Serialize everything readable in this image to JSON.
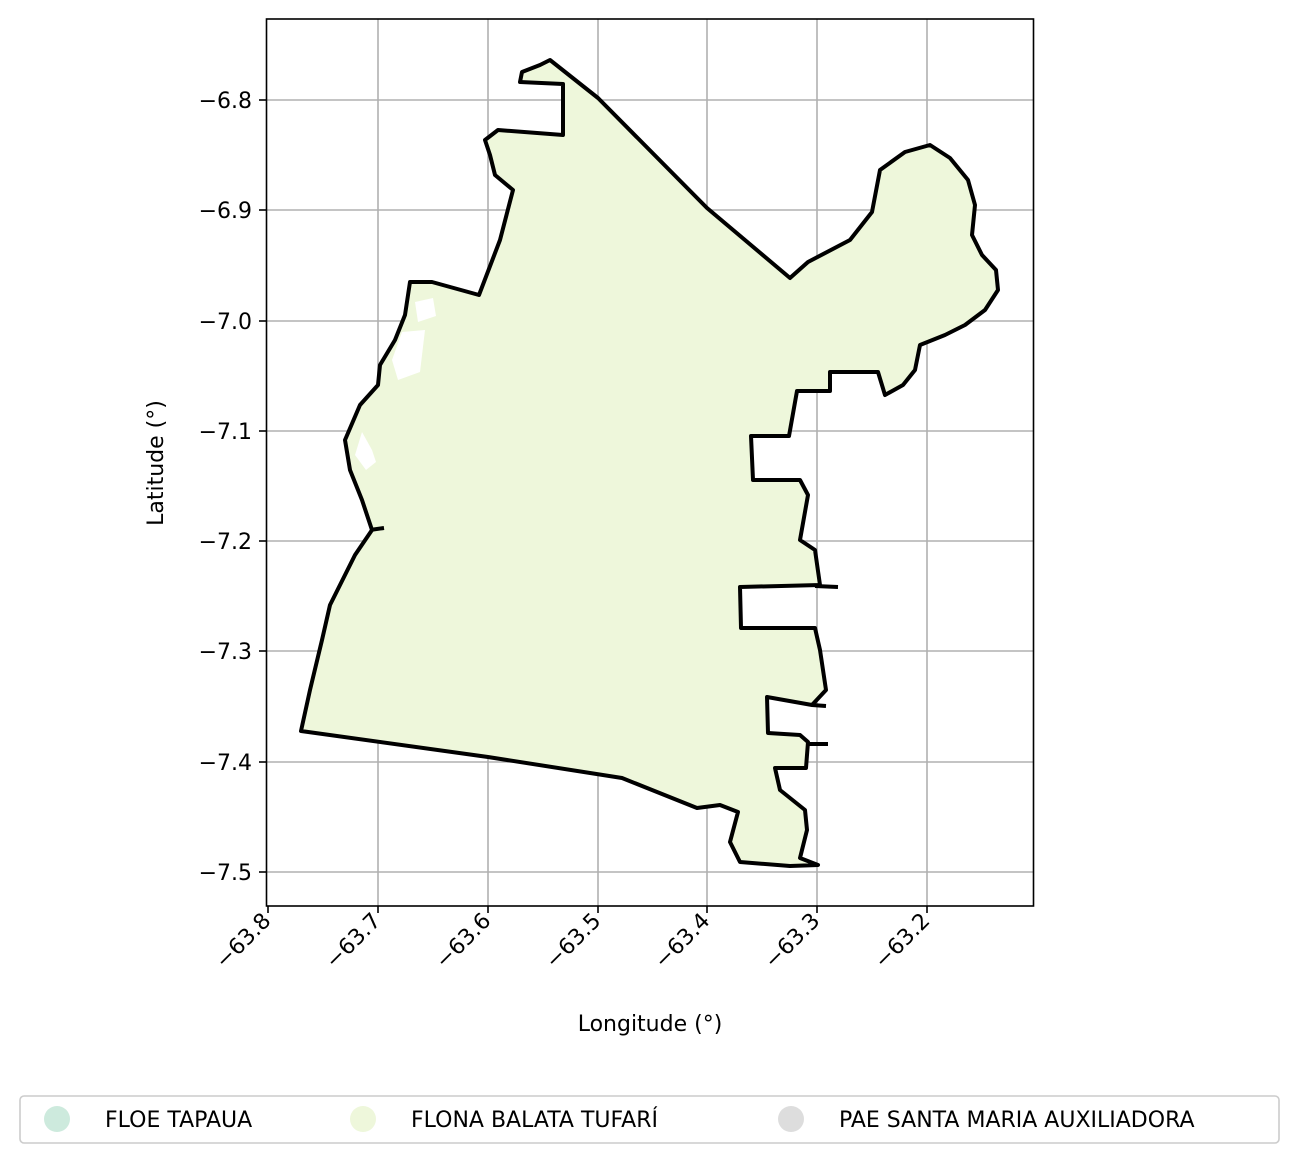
{
  "map": {
    "xlabel": "Longitude (°)",
    "ylabel": "Latitude (°)",
    "x_ticks": [
      "−63.8",
      "−63.7",
      "−63.6",
      "−63.5",
      "−63.4",
      "−63.3",
      "−63.2"
    ],
    "y_ticks": [
      "−6.8",
      "−6.9",
      "−7.0",
      "−7.1",
      "−7.2",
      "−7.3",
      "−7.4",
      "−7.5"
    ],
    "x_range": [
      -63.81,
      -63.14
    ],
    "y_range": [
      -7.53,
      -6.73
    ],
    "grid": true,
    "boundary_color": "#000000"
  },
  "legend": {
    "placement": "bottom-center",
    "items": [
      {
        "label": "FLOE TAPAUA",
        "color": "#cdeadd"
      },
      {
        "label": "FLONA BALATA TUFARÍ",
        "color": "#eef7db"
      },
      {
        "label": "PAE SANTA MARIA AUXILIADORA",
        "color": "#dddddd"
      }
    ]
  }
}
